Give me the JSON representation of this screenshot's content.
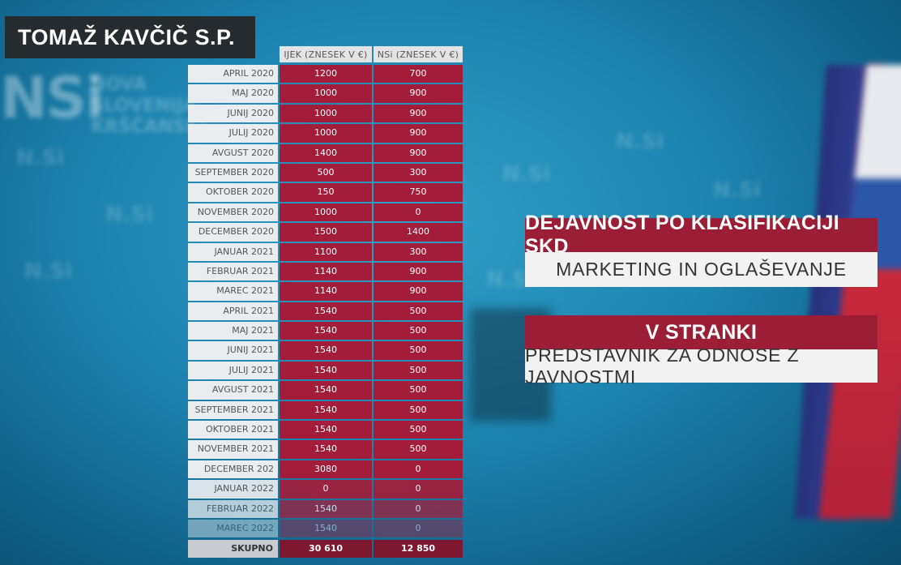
{
  "title": "TOMAŽ KAVČIČ S.P.",
  "table": {
    "col1_header": "IJEK (ZNESEK V €)",
    "col2_header": "NSi (ZNESEK V €)",
    "rows": [
      {
        "month": "APRIL 2020",
        "v1": "1200",
        "v2": "700"
      },
      {
        "month": "MAJ 2020",
        "v1": "1000",
        "v2": "900"
      },
      {
        "month": "JUNIJ 2020",
        "v1": "1000",
        "v2": "900"
      },
      {
        "month": "JULIJ 2020",
        "v1": "1000",
        "v2": "900"
      },
      {
        "month": "AVGUST 2020",
        "v1": "1400",
        "v2": "900"
      },
      {
        "month": "SEPTEMBER 2020",
        "v1": "500",
        "v2": "300"
      },
      {
        "month": "OKTOBER 2020",
        "v1": "150",
        "v2": "750"
      },
      {
        "month": "NOVEMBER 2020",
        "v1": "1000",
        "v2": "0"
      },
      {
        "month": "DECEMBER 2020",
        "v1": "1500",
        "v2": "1400"
      },
      {
        "month": "JANUAR 2021",
        "v1": "1100",
        "v2": "300"
      },
      {
        "month": "FEBRUAR 2021",
        "v1": "1140",
        "v2": "900"
      },
      {
        "month": "MAREC 2021",
        "v1": "1140",
        "v2": "900"
      },
      {
        "month": "APRIL 2021",
        "v1": "1540",
        "v2": "500"
      },
      {
        "month": "MAJ 2021",
        "v1": "1540",
        "v2": "500"
      },
      {
        "month": "JUNIJ 2021",
        "v1": "1540",
        "v2": "500"
      },
      {
        "month": "JULIJ 2021",
        "v1": "1540",
        "v2": "500"
      },
      {
        "month": "AVGUST 2021",
        "v1": "1540",
        "v2": "500"
      },
      {
        "month": "SEPTEMBER 2021",
        "v1": "1540",
        "v2": "500"
      },
      {
        "month": "OKTOBER 2021",
        "v1": "1540",
        "v2": "500"
      },
      {
        "month": "NOVEMBER 2021",
        "v1": "1540",
        "v2": "500"
      },
      {
        "month": "DECEMBER 202",
        "v1": "3080",
        "v2": "0"
      },
      {
        "month": "JANUAR 2022",
        "v1": "0",
        "v2": "0"
      },
      {
        "month": "FEBRUAR 2022",
        "v1": "1540",
        "v2": "0"
      },
      {
        "month": "MAREC 2022",
        "v1": "1540",
        "v2": "0"
      }
    ],
    "total_label": "SKUPNO",
    "total_v1": "30 610",
    "total_v2": "12 850"
  },
  "info": {
    "activity_title": "DEJAVNOST PO KLASIFIKACIJI SKD",
    "activity_value": "MARKETING IN OGLAŠEVANJE",
    "party_title": "V STRANKI",
    "party_value": "PREDSTAVNIK ZA ODNOSE Z JAVNOSTMI"
  },
  "background": {
    "logo_text": "NSi",
    "logo_sub": "NOVA SLOVENIJA KRŠČANSKI"
  },
  "colors": {
    "accent_red": "#a31d3a",
    "dark_red": "#9c1e36",
    "title_box": "#262b30"
  }
}
